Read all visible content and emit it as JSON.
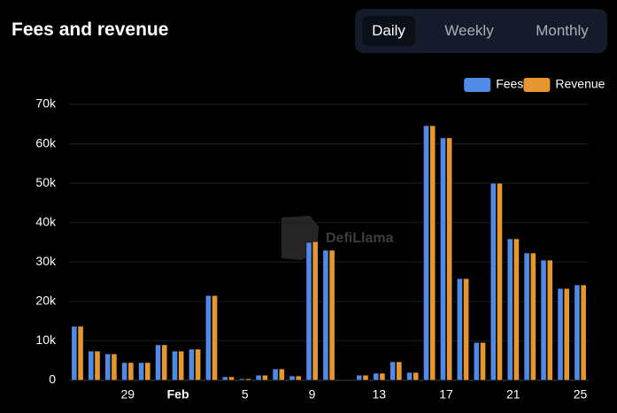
{
  "header": {
    "title": "Fees and revenue",
    "tabs": [
      "Daily",
      "Weekly",
      "Monthly"
    ],
    "active_tab": 0
  },
  "watermark": "DefiLlama",
  "chart_data": {
    "type": "bar",
    "categories": [
      null,
      null,
      null,
      "29",
      null,
      null,
      "Feb",
      null,
      null,
      null,
      "5",
      null,
      null,
      null,
      "9",
      null,
      null,
      null,
      "13",
      null,
      null,
      null,
      "17",
      null,
      null,
      null,
      "21",
      null,
      null,
      null,
      "25"
    ],
    "series": [
      {
        "name": "Fees",
        "color": "#5189e6",
        "values": [
          13700,
          7400,
          6700,
          4500,
          4500,
          9000,
          7400,
          7900,
          21500,
          900,
          400,
          1300,
          2900,
          1100,
          35000,
          33000,
          0,
          1300,
          1800,
          4700,
          2000,
          64600,
          61500,
          25800,
          9600,
          50000,
          35900,
          32300,
          30500,
          23300,
          24200
        ]
      },
      {
        "name": "Revenue",
        "color": "#e5962f",
        "values": [
          13700,
          7400,
          6700,
          4500,
          4500,
          9000,
          7400,
          7900,
          21500,
          900,
          400,
          1300,
          2900,
          1100,
          35200,
          33000,
          0,
          1300,
          1800,
          4700,
          2000,
          64600,
          61500,
          25800,
          9600,
          50000,
          35900,
          32300,
          30500,
          23300,
          24200
        ]
      }
    ],
    "ylim": [
      0,
      70000
    ],
    "yticks": [
      0,
      {
        "value": 10000,
        "label": "10k"
      },
      {
        "value": 20000,
        "label": "20k"
      },
      {
        "value": 30000,
        "label": "30k"
      },
      {
        "value": 40000,
        "label": "40k"
      },
      {
        "value": 50000,
        "label": "50k"
      },
      {
        "value": 60000,
        "label": "60k"
      },
      {
        "value": 70000,
        "label": "70k"
      }
    ],
    "grid": true,
    "legend": "top-right"
  }
}
